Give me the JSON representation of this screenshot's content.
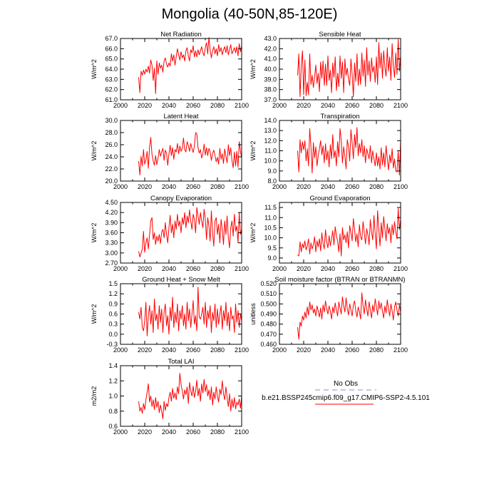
{
  "figure": {
    "title": "Mongolia (40-50N,85-120E)"
  },
  "legend": {
    "obs_label": "No Obs",
    "obs_color": "#a3a3cc",
    "model_label": "b.e21.BSSP245cmip6.f09_g17.CMIP6-SSP2-4.5.101",
    "model_color": "#ff0000"
  },
  "chart_data": [
    {
      "type": "line",
      "title": "Net Radiation",
      "ylabel": "W/m^2",
      "xlim": [
        2000,
        2100
      ],
      "xticks": [
        2000,
        2020,
        2040,
        2060,
        2080,
        2100
      ],
      "ylim": [
        61.0,
        67.0
      ],
      "yticks": [
        61.0,
        62.0,
        63.0,
        64.0,
        65.0,
        66.0,
        67.0
      ],
      "ydecimals": 1,
      "series": [
        {
          "name": "b.e21.BSSP245cmip6.f09_g17.CMIP6-SSP2-4.5.101",
          "x_start": 2015,
          "values": [
            63.2,
            61.7,
            63.8,
            63.4,
            63.9,
            63.5,
            64.0,
            63.7,
            64.3,
            63.6,
            64.9,
            64.4,
            62.9,
            64.1,
            61.6,
            64.8,
            63.5,
            64.6,
            64.1,
            64.4,
            63.7,
            64.8,
            65.1,
            64.5,
            64.2,
            64.6,
            64.3,
            65.5,
            64.8,
            65.4,
            64.4,
            65.2,
            66.0,
            65.4,
            64.9,
            65.7,
            65.1,
            65.4,
            64.8,
            65.8,
            66.1,
            65.3,
            64.8,
            65.9,
            65.6,
            66.3,
            65.2,
            65.8,
            65.2,
            65.9,
            65.4,
            65.8,
            66.2,
            65.6,
            65.3,
            66.1,
            66.6,
            65.5,
            67.1,
            65.9,
            65.1,
            65.8,
            66.2,
            65.5,
            66.0,
            65.3,
            66.4,
            65.7,
            66.1,
            65.4,
            65.9,
            66.2,
            65.6,
            66.3,
            65.4,
            65.9,
            66.4,
            65.5,
            65.8,
            66.1,
            65.6,
            66.2,
            65.3,
            66.5,
            65.7,
            66.3
          ]
        }
      ]
    },
    {
      "type": "line",
      "title": "Sensible Heat",
      "ylabel": "W/m^2",
      "xlim": [
        2000,
        2100
      ],
      "xticks": [
        2000,
        2020,
        2040,
        2060,
        2080,
        2100
      ],
      "ylim": [
        37.0,
        43.0
      ],
      "yticks": [
        37.0,
        38.0,
        39.0,
        40.0,
        41.0,
        42.0,
        43.0
      ],
      "ydecimals": 1,
      "series": [
        {
          "name": "b.e21.BSSP245cmip6.f09_g17.CMIP6-SSP2-4.5.101",
          "x_start": 2015,
          "values": [
            39.4,
            41.5,
            37.3,
            40.3,
            41.8,
            37.5,
            40.9,
            37.4,
            38.7,
            37.5,
            41.5,
            38.5,
            39.4,
            38.2,
            39.2,
            40.4,
            38.6,
            39.6,
            37.8,
            40.7,
            39.1,
            40.8,
            38.4,
            40.5,
            38.4,
            41.3,
            38.9,
            39.9,
            37.7,
            40.6,
            39.2,
            41.2,
            37.9,
            39.6,
            38.3,
            41.3,
            39.1,
            40.7,
            37.7,
            41.0,
            39.4,
            40.1,
            39.0,
            38.4,
            41.0,
            39.5,
            37.3,
            40.6,
            38.8,
            41.5,
            38.4,
            40.0,
            38.5,
            41.6,
            39.3,
            40.9,
            38.3,
            42.1,
            39.4,
            40.8,
            38.8,
            41.1,
            39.7,
            40.3,
            38.7,
            41.2,
            38.5,
            42.6,
            40.1,
            41.6,
            39.1,
            41.8,
            40.2,
            39.3,
            42.1,
            39.8,
            41.2,
            38.9,
            42.5,
            40.3,
            39.2,
            41.6,
            39.5,
            42.9,
            39.8,
            41.3
          ]
        }
      ]
    },
    {
      "type": "line",
      "title": "Latent Heat",
      "ylabel": "W/m^2",
      "xlim": [
        2000,
        2100
      ],
      "xticks": [
        2000,
        2020,
        2040,
        2060,
        2080,
        2100
      ],
      "ylim": [
        20.0,
        30.0
      ],
      "yticks": [
        20.0,
        22.0,
        24.0,
        26.0,
        28.0,
        30.0
      ],
      "ydecimals": 1,
      "series": [
        {
          "name": "b.e21.BSSP245cmip6.f09_g17.CMIP6-SSP2-4.5.101",
          "x_start": 2015,
          "values": [
            23.3,
            21.0,
            24.1,
            22.5,
            25.2,
            22.8,
            23.5,
            24.9,
            22.1,
            25.6,
            27.2,
            24.4,
            23.3,
            22.6,
            24.2,
            22.7,
            23.8,
            25.2,
            24.1,
            24.8,
            25.4,
            23.4,
            25.1,
            24.6,
            22.6,
            24.5,
            25.9,
            24.2,
            25.5,
            23.6,
            25.2,
            24.8,
            26.2,
            24.5,
            25.8,
            24.9,
            25.4,
            27.1,
            25.2,
            24.8,
            26.5,
            25.9,
            24.9,
            26.2,
            25.4,
            24.7,
            25.8,
            28.0,
            27.8,
            25.5,
            24.6,
            25.2,
            23.8,
            24.5,
            26.1,
            24.3,
            25.5,
            24.2,
            25.4,
            24.8,
            23.4,
            24.6,
            25.1,
            24.2,
            23.2,
            23.9,
            22.8,
            25.4,
            23.6,
            24.5,
            22.9,
            25.3,
            24.1,
            23.0,
            26.0,
            24.2,
            25.5,
            23.4,
            22.2,
            24.8,
            22.5,
            24.9,
            22.3,
            26.5,
            24.9,
            23.8
          ]
        }
      ]
    },
    {
      "type": "line",
      "title": "Transpiration",
      "ylabel": "W/m^2",
      "xlim": [
        2000,
        2100
      ],
      "xticks": [
        2000,
        2020,
        2040,
        2060,
        2080,
        2100
      ],
      "ylim": [
        8.0,
        14.0
      ],
      "yticks": [
        8.0,
        9.0,
        10.0,
        11.0,
        12.0,
        13.0,
        14.0
      ],
      "ydecimals": 1,
      "series": [
        {
          "name": "b.e21.BSSP245cmip6.f09_g17.CMIP6-SSP2-4.5.101",
          "x_start": 2015,
          "values": [
            11.0,
            8.9,
            12.1,
            10.8,
            11.9,
            11.1,
            12.0,
            10.0,
            11.2,
            9.5,
            13.2,
            11.4,
            8.8,
            11.8,
            10.3,
            11.4,
            9.5,
            10.5,
            11.2,
            12.0,
            10.6,
            11.5,
            9.8,
            11.7,
            10.1,
            11.0,
            9.4,
            11.6,
            10.2,
            12.6,
            10.3,
            11.0,
            9.5,
            11.9,
            10.4,
            13.2,
            12.0,
            9.8,
            11.4,
            10.5,
            9.2,
            12.1,
            11.4,
            10.0,
            13.1,
            11.8,
            10.2,
            12.6,
            11.3,
            13.3,
            10.5,
            11.7,
            10.8,
            12.1,
            10.4,
            11.5,
            9.8,
            11.2,
            10.7,
            10.2,
            11.5,
            9.8,
            11.0,
            10.2,
            9.5,
            10.8,
            9.5,
            10.4,
            9.2,
            11.3,
            9.6,
            10.8,
            9.4,
            11.5,
            10.2,
            9.1,
            10.6,
            9.8,
            11.2,
            9.3,
            10.2,
            9.0,
            8.9,
            11.0,
            8.6,
            12.0
          ]
        }
      ]
    },
    {
      "type": "line",
      "title": "Canopy Evaporation",
      "ylabel": "W/m^2",
      "xlim": [
        2000,
        2100
      ],
      "xticks": [
        2000,
        2020,
        2040,
        2060,
        2080,
        2100
      ],
      "ylim": [
        2.7,
        4.5
      ],
      "yticks": [
        2.7,
        3.0,
        3.3,
        3.6,
        3.9,
        4.2,
        4.5
      ],
      "ydecimals": 2,
      "series": [
        {
          "name": "b.e21.BSSP245cmip6.f09_g17.CMIP6-SSP2-4.5.101",
          "x_start": 2015,
          "values": [
            3.05,
            2.88,
            3.0,
            3.1,
            3.64,
            3.02,
            3.3,
            3.45,
            3.12,
            3.55,
            3.95,
            4.05,
            3.4,
            3.6,
            3.25,
            3.5,
            3.35,
            3.55,
            3.28,
            3.62,
            3.7,
            3.45,
            3.9,
            3.55,
            3.3,
            3.75,
            4.12,
            3.6,
            3.85,
            3.45,
            3.95,
            3.7,
            4.15,
            3.8,
            3.95,
            3.6,
            4.05,
            3.85,
            4.2,
            3.75,
            4.1,
            3.9,
            4.28,
            3.95,
            3.7,
            4.15,
            4.0,
            3.6,
            4.35,
            4.1,
            3.85,
            4.2,
            3.95,
            3.75,
            4.3,
            4.0,
            3.4,
            4.05,
            3.8,
            3.35,
            4.25,
            3.6,
            3.2,
            3.95,
            4.05,
            3.55,
            3.85,
            3.3,
            4.0,
            3.7,
            3.25,
            3.95,
            3.55,
            4.1,
            3.45,
            3.15,
            3.75,
            3.95,
            3.5,
            4.15,
            3.65,
            3.8,
            3.3,
            4.2,
            3.55,
            3.7
          ]
        }
      ]
    },
    {
      "type": "line",
      "title": "Ground Evaporation",
      "ylabel": "W/m^2",
      "xlim": [
        2000,
        2100
      ],
      "xticks": [
        2000,
        2020,
        2040,
        2060,
        2080,
        2100
      ],
      "ylim": [
        8.75,
        11.75
      ],
      "yticks": [
        9.0,
        9.5,
        10.0,
        10.5,
        11.0,
        11.5
      ],
      "ydecimals": 1,
      "series": [
        {
          "name": "b.e21.BSSP245cmip6.f09_g17.CMIP6-SSP2-4.5.101",
          "x_start": 2015,
          "values": [
            9.15,
            9.1,
            9.8,
            9.3,
            9.7,
            9.5,
            9.85,
            9.4,
            9.6,
            9.95,
            9.2,
            9.75,
            9.45,
            9.65,
            10.05,
            9.3,
            9.85,
            9.55,
            9.95,
            9.35,
            10.25,
            9.7,
            9.45,
            10.4,
            9.8,
            9.5,
            10.1,
            9.6,
            9.95,
            10.35,
            9.65,
            10.55,
            10.1,
            9.85,
            9.3,
            10.2,
            9.1,
            10.5,
            9.9,
            10.15,
            9.75,
            10.3,
            9.5,
            10.6,
            10.25,
            9.85,
            10.95,
            10.4,
            9.8,
            10.2,
            9.55,
            10.65,
            10.05,
            9.9,
            10.8,
            10.25,
            9.7,
            10.45,
            10.15,
            9.65,
            10.9,
            10.3,
            9.9,
            11.1,
            10.2,
            9.45,
            11.35,
            10.4,
            9.6,
            10.75,
            10.0,
            11.05,
            10.45,
            9.85,
            10.7,
            10.2,
            10.5,
            9.75,
            10.65,
            10.15,
            10.8,
            10.3,
            9.95,
            11.45,
            10.4,
            10.9
          ]
        }
      ]
    },
    {
      "type": "line",
      "title": "Ground Heat + Snow Melt",
      "ylabel": "W/m^2",
      "xlim": [
        2000,
        2100
      ],
      "xticks": [
        2000,
        2020,
        2040,
        2060,
        2080,
        2100
      ],
      "ylim": [
        -0.3,
        1.5
      ],
      "yticks": [
        -0.3,
        0.0,
        0.3,
        0.6,
        0.9,
        1.2,
        1.5
      ],
      "ydecimals": 1,
      "series": [
        {
          "name": "b.e21.BSSP245cmip6.f09_g17.CMIP6-SSP2-4.5.101",
          "x_start": 2015,
          "values": [
            0.65,
            0.45,
            0.8,
            0.2,
            0.1,
            0.4,
            0.95,
            -0.05,
            0.55,
            0.85,
            0.3,
            0.7,
            0.05,
            1.05,
            0.4,
            0.6,
            0.15,
            0.85,
            0.35,
            0.75,
            0.05,
            0.65,
            0.9,
            0.25,
            0.55,
            0.0,
            0.8,
            0.4,
            1.1,
            0.2,
            0.65,
            0.35,
            0.9,
            0.1,
            0.7,
            0.45,
            0.85,
            0.25,
            0.6,
            0.15,
            0.95,
            0.4,
            0.75,
            0.2,
            0.6,
            1.0,
            0.3,
            0.55,
            0.1,
            1.4,
            0.5,
            0.45,
            0.6,
            0.8,
            0.3,
            0.95,
            0.2,
            0.7,
            0.45,
            0.85,
            0.05,
            0.65,
            0.4,
            0.9,
            0.2,
            0.75,
            0.3,
            0.6,
            0.85,
            0.15,
            0.7,
            0.4,
            0.95,
            0.25,
            0.65,
            0.1,
            0.8,
            0.45,
            0.55,
            0.05,
            0.9,
            0.35,
            0.7,
            0.2,
            0.6,
            0.4
          ]
        }
      ]
    },
    {
      "type": "line",
      "title": "Soil moisture factor (BTRAN or BTRANMN)",
      "ylabel": "unitless",
      "xlim": [
        2000,
        2100
      ],
      "xticks": [
        2000,
        2020,
        2040,
        2060,
        2080,
        2100
      ],
      "ylim": [
        0.46,
        0.52
      ],
      "yticks": [
        0.46,
        0.47,
        0.48,
        0.49,
        0.5,
        0.51,
        0.52
      ],
      "ydecimals": 3,
      "series": [
        {
          "name": "b.e21.BSSP245cmip6.f09_g17.CMIP6-SSP2-4.5.101",
          "x_start": 2015,
          "values": [
            0.477,
            0.465,
            0.482,
            0.478,
            0.488,
            0.484,
            0.492,
            0.486,
            0.497,
            0.489,
            0.502,
            0.494,
            0.499,
            0.491,
            0.495,
            0.488,
            0.498,
            0.493,
            0.487,
            0.496,
            0.485,
            0.499,
            0.492,
            0.503,
            0.495,
            0.49,
            0.498,
            0.493,
            0.485,
            0.497,
            0.491,
            0.501,
            0.494,
            0.488,
            0.502,
            0.496,
            0.49,
            0.507,
            0.498,
            0.492,
            0.506,
            0.495,
            0.489,
            0.5,
            0.494,
            0.488,
            0.499,
            0.503,
            0.493,
            0.487,
            0.497,
            0.492,
            0.485,
            0.511,
            0.498,
            0.49,
            0.504,
            0.495,
            0.488,
            0.502,
            0.494,
            0.486,
            0.499,
            0.492,
            0.505,
            0.497,
            0.489,
            0.503,
            0.495,
            0.501,
            0.493,
            0.486,
            0.498,
            0.491,
            0.504,
            0.495,
            0.488,
            0.5,
            0.493,
            0.484,
            0.497,
            0.502,
            0.494,
            0.488,
            0.499,
            0.492
          ]
        }
      ]
    },
    {
      "type": "line",
      "title": "Total LAI",
      "ylabel": "m2/m2",
      "xlim": [
        2000,
        2100
      ],
      "xticks": [
        2000,
        2020,
        2040,
        2060,
        2080,
        2100
      ],
      "ylim": [
        0.6,
        1.4
      ],
      "yticks": [
        0.6,
        0.8,
        1.0,
        1.2,
        1.4
      ],
      "ydecimals": 1,
      "series": [
        {
          "name": "b.e21.BSSP245cmip6.f09_g17.CMIP6-SSP2-4.5.101",
          "x_start": 2015,
          "values": [
            0.93,
            0.8,
            0.85,
            0.77,
            0.9,
            0.82,
            0.95,
            1.05,
            1.16,
            0.92,
            1.0,
            0.86,
            0.95,
            0.82,
            0.98,
            0.85,
            0.93,
            0.78,
            0.88,
            0.8,
            0.7,
            0.93,
            0.81,
            0.9,
            0.86,
            0.98,
            1.05,
            0.93,
            1.1,
            0.97,
            1.04,
            0.95,
            1.12,
            1.03,
            1.3,
            1.15,
            1.07,
            0.96,
            1.08,
            1.02,
            1.12,
            0.9,
            1.18,
            1.07,
            1.0,
            1.13,
            0.98,
            1.06,
            1.21,
            1.0,
            1.1,
            0.93,
            1.16,
            1.04,
            1.22,
            1.06,
            1.15,
            1.0,
            1.08,
            0.95,
            1.12,
            0.88,
            1.05,
            0.96,
            1.12,
            1.0,
            0.92,
            1.09,
            1.02,
            1.2,
            1.03,
            0.95,
            1.12,
            0.98,
            0.86,
            1.03,
            0.8,
            0.96,
            0.85,
            0.98,
            0.83,
            0.92,
            0.88,
            0.96,
            0.84,
            1.0
          ]
        }
      ]
    }
  ]
}
